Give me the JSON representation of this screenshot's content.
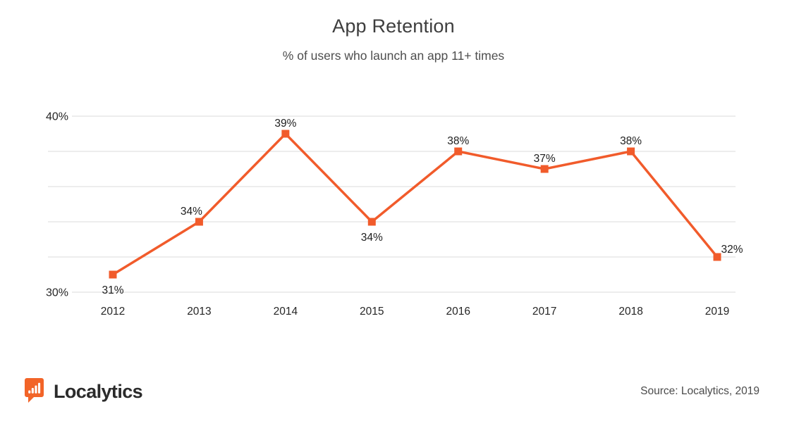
{
  "chart_data": {
    "type": "line",
    "title": "App Retention",
    "subtitle": "% of users who launch an app 11+ times",
    "categories": [
      "2012",
      "2013",
      "2014",
      "2015",
      "2016",
      "2017",
      "2018",
      "2019"
    ],
    "series": [
      {
        "name": "App Retention",
        "values": [
          31,
          34,
          39,
          34,
          38,
          37,
          38,
          32
        ]
      }
    ],
    "value_labels": [
      "31%",
      "34%",
      "39%",
      "34%",
      "38%",
      "37%",
      "38%",
      "32%"
    ],
    "value_label_positions": [
      "below",
      "above-left",
      "above",
      "below",
      "above",
      "above",
      "above",
      "above-right"
    ],
    "unit": "%",
    "ylim": [
      30,
      40
    ],
    "gridline_values": [
      30,
      32,
      34,
      36,
      38,
      40
    ],
    "yticks_labeled": [
      30,
      40
    ],
    "ytick_labels": [
      "30%",
      "40%"
    ],
    "grid": true,
    "legend": false,
    "marker": "square",
    "line_color": "#F15B2B"
  },
  "footer": {
    "logo_text": "Localytics",
    "logo_icon": "bar-chart-speech-bubble-icon",
    "source": "Source: Localytics, 2019"
  },
  "colors": {
    "accent": "#F15B2B",
    "logo_orange": "#F26428",
    "grid": "#DBDBDB",
    "title_text": "#3E3E3E",
    "subtitle_text": "#4E4E4E",
    "axis_text": "#262626",
    "data_label_text": "#1D1D1D",
    "source_text": "#4B4B4B",
    "logo_text_color": "#2B2B2B",
    "background": "#FFFFFF"
  }
}
